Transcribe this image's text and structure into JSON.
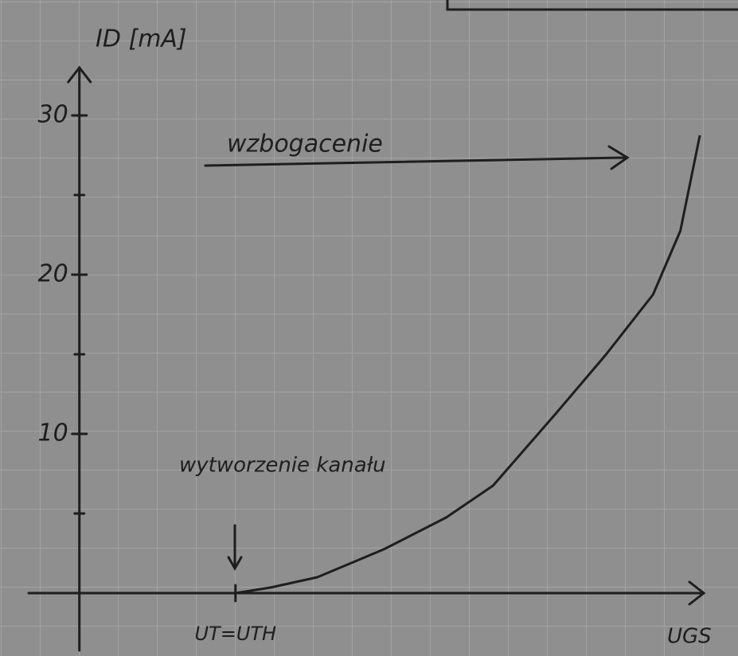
{
  "chart_data": {
    "type": "line",
    "y_label": "ID [mA]",
    "x_label": "UGS",
    "annotations": [
      "wzbogacenie",
      "wytworzenie kanału"
    ],
    "x": [
      4,
      4.9,
      6.1,
      7.8,
      9.4,
      10.6,
      12.2,
      13.5,
      14.7,
      15.4,
      15.9
    ],
    "series": [
      {
        "color": "#1e1e1e",
        "values": [
          0,
          0.35,
          1,
          2.75,
          4.75,
          6.75,
          11.25,
          15,
          18.75,
          22.75,
          28.75
        ]
      }
    ],
    "xlim": [
      -1.3,
      16
    ],
    "xticks": [
      {
        "value": 4,
        "label": "UT=UTH"
      }
    ],
    "ylim": [
      -3.6,
      33
    ],
    "yticks": [
      10,
      20,
      30
    ],
    "yminorticks": [
      5,
      15,
      25
    ],
    "grid": true
  }
}
